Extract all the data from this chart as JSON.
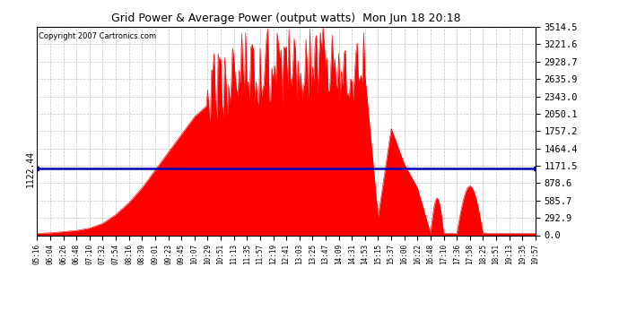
{
  "title": "Grid Power & Average Power (output watts)  Mon Jun 18 20:18",
  "copyright": "Copyright 2007 Cartronics.com",
  "average_value": 1122.44,
  "y_max": 3514.5,
  "y_min": 0.0,
  "y_ticks": [
    0.0,
    292.9,
    585.7,
    878.6,
    1171.5,
    1464.4,
    1757.2,
    2050.1,
    2343.0,
    2635.9,
    2928.7,
    3221.6,
    3514.5
  ],
  "x_labels": [
    "05:16",
    "06:04",
    "06:26",
    "06:48",
    "07:10",
    "07:32",
    "07:54",
    "08:16",
    "08:39",
    "09:01",
    "09:23",
    "09:45",
    "10:07",
    "10:29",
    "10:51",
    "11:13",
    "11:35",
    "11:57",
    "12:19",
    "12:41",
    "13:03",
    "13:25",
    "13:47",
    "14:09",
    "14:31",
    "14:53",
    "15:15",
    "15:37",
    "16:00",
    "16:22",
    "16:48",
    "17:10",
    "17:36",
    "17:58",
    "18:25",
    "18:51",
    "19:13",
    "19:35",
    "19:57"
  ],
  "background_color": "#ffffff",
  "fill_color": "#ff0000",
  "line_color": "#ff0000",
  "avg_line_color": "#0000bb",
  "grid_color": "#bbbbbb",
  "title_color": "#000000",
  "avg_label_color": "#000000",
  "figsize": [
    6.9,
    3.75
  ],
  "dpi": 100
}
